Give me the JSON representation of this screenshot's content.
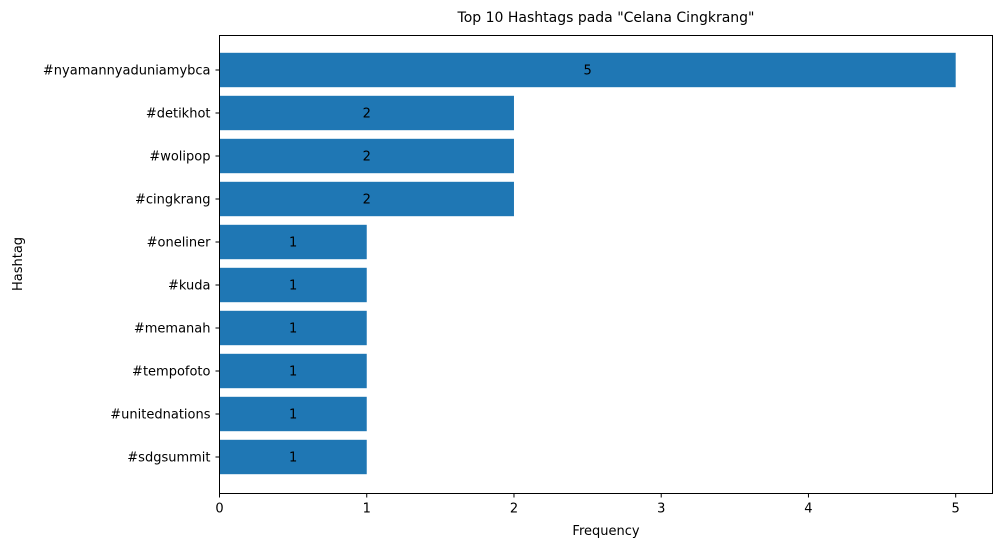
{
  "chart_data": {
    "type": "bar",
    "orientation": "horizontal",
    "title": "Top 10 Hashtags pada \"Celana Cingkrang\"",
    "xlabel": "Frequency",
    "ylabel": "Hashtag",
    "xlim": [
      0,
      5.25
    ],
    "xticks": [
      0,
      1,
      2,
      3,
      4,
      5
    ],
    "grid": false,
    "legend": "none",
    "bar_color": "#1f77b4",
    "categories": [
      "#nyamannyaduniamybca",
      "#detikhot",
      "#wolipop",
      "#cingkrang",
      "#oneliner",
      "#kuda",
      "#memanah",
      "#tempofoto",
      "#unitednations",
      "#sdgsummit"
    ],
    "values": [
      5,
      2,
      2,
      2,
      1,
      1,
      1,
      1,
      1,
      1
    ],
    "data_labels": [
      "5",
      "2",
      "2",
      "2",
      "1",
      "1",
      "1",
      "1",
      "1",
      "1"
    ]
  }
}
